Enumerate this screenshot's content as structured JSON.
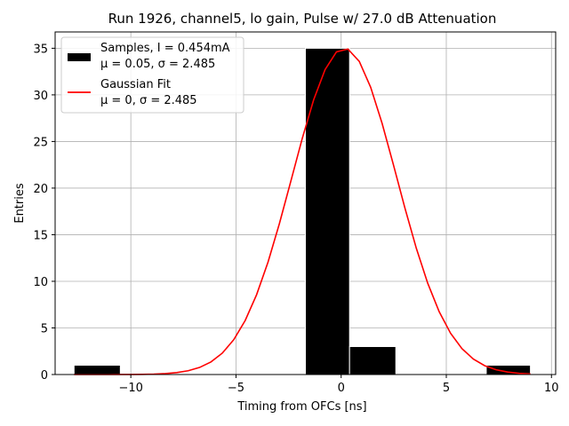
{
  "chart_data": {
    "type": "bar",
    "title": "Run 1926, channel5, lo gain, Pulse w/ 27.0 dB Attenuation",
    "xlabel": "Timing from OFCs [ns]",
    "ylabel": "Entries",
    "xlim": [
      -13.6,
      10.2
    ],
    "ylim": [
      0,
      36.75
    ],
    "xticks": [
      -10,
      -5,
      0,
      5,
      10
    ],
    "xtick_labels": [
      "−10",
      "−5",
      "0",
      "5",
      "10"
    ],
    "yticks": [
      0,
      5,
      10,
      15,
      20,
      25,
      30,
      35
    ],
    "ytick_labels": [
      "0",
      "5",
      "10",
      "15",
      "20",
      "25",
      "30",
      "35"
    ],
    "grid": true,
    "legend_position": "top-left",
    "colors": {
      "histogram": "#000000",
      "fit": "#ff0000",
      "grid": "#b0b0b0"
    },
    "histogram": {
      "name": "Samples, I = 0.454mA",
      "name_line2": "μ = 0.05, σ = 2.485",
      "bins": [
        {
          "x0": -12.7,
          "x1": -10.5,
          "count": 1
        },
        {
          "x0": -1.7,
          "x1": 0.4,
          "count": 35
        },
        {
          "x0": 0.4,
          "x1": 2.6,
          "count": 3
        },
        {
          "x0": 6.9,
          "x1": 9.0,
          "count": 1
        }
      ]
    },
    "fit": {
      "name": "Gaussian Fit",
      "name_line2": "μ = 0, σ = 2.485",
      "mu": 0.15,
      "sigma": 2.485,
      "amplitude": 35,
      "x_range": [
        -12.7,
        9.0
      ]
    }
  }
}
